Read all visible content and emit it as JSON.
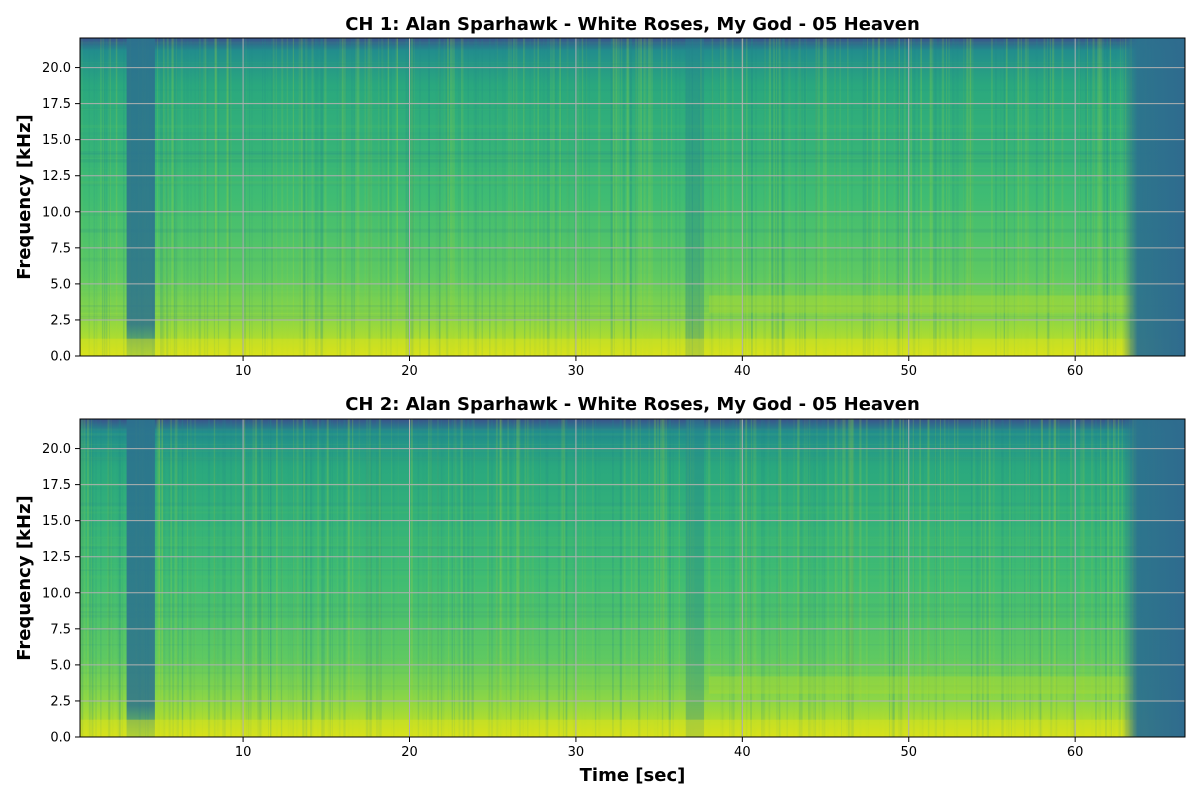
{
  "chart_data": [
    {
      "type": "heatmap",
      "title": "CH 1: Alan Sparhawk - White Roses, My God - 05 Heaven",
      "xlabel": "",
      "ylabel": "Frequency [kHz]",
      "xlim": [
        0.2,
        66.6
      ],
      "ylim": [
        0,
        22.05
      ],
      "xticks": [
        10,
        20,
        30,
        40,
        50,
        60
      ],
      "yticks": [
        0.0,
        2.5,
        5.0,
        7.5,
        10.0,
        12.5,
        15.0,
        17.5,
        20.0
      ],
      "xtick_labels": [
        "10",
        "20",
        "30",
        "40",
        "50",
        "60"
      ],
      "ytick_labels": [
        "0.0",
        "2.5",
        "5.0",
        "7.5",
        "10.0",
        "12.5",
        "15.0",
        "17.5",
        "20.0"
      ],
      "grid": true,
      "colormap": "viridis"
    },
    {
      "type": "heatmap",
      "title": "CH 2: Alan Sparhawk - White Roses, My God - 05 Heaven",
      "xlabel": "Time [sec]",
      "ylabel": "Frequency [kHz]",
      "xlim": [
        0.2,
        66.6
      ],
      "ylim": [
        0,
        22.05
      ],
      "xticks": [
        10,
        20,
        30,
        40,
        50,
        60
      ],
      "yticks": [
        0.0,
        2.5,
        5.0,
        7.5,
        10.0,
        12.5,
        15.0,
        17.5,
        20.0
      ],
      "xtick_labels": [
        "10",
        "20",
        "30",
        "40",
        "50",
        "60"
      ],
      "ytick_labels": [
        "0.0",
        "2.5",
        "5.0",
        "7.5",
        "10.0",
        "12.5",
        "15.0",
        "17.5",
        "20.0"
      ],
      "grid": true,
      "colormap": "viridis"
    }
  ],
  "colors": {
    "spectrogram_low": "#2e7b8c",
    "spectrogram_mid": "#2fb47c",
    "spectrogram_high": "#d0e11c",
    "spectrogram_top": "#3f4a8a",
    "grid": "#b0b0b0"
  }
}
